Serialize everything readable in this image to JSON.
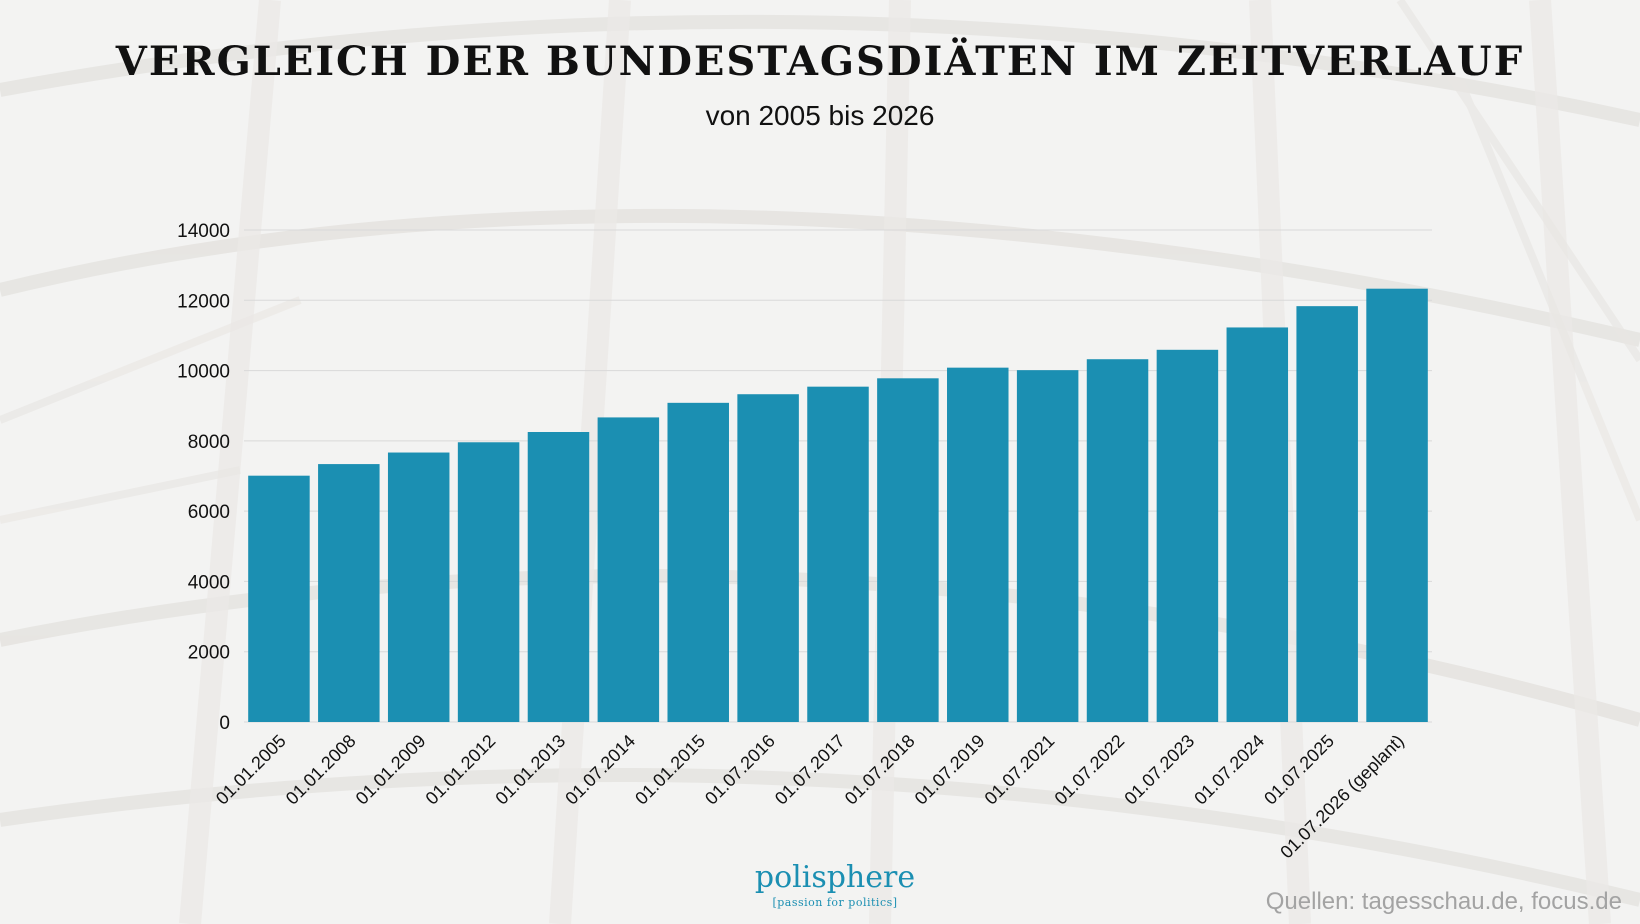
{
  "header": {
    "title": "VERGLEICH DER BUNDESTAGSDIÄTEN IM ZEITVERLAUF",
    "subtitle": "von 2005 bis 2026"
  },
  "branding": {
    "logo_name": "polisphere",
    "logo_tagline": "[passion for politics]",
    "brand_color": "#1b8fb2"
  },
  "footer": {
    "sources": "Quellen: tagesschau.de, focus.de"
  },
  "chart_data": {
    "type": "bar",
    "title": "VERGLEICH DER BUNDESTAGSDIÄTEN IM ZEITVERLAUF",
    "subtitle": "von 2005 bis 2026",
    "xlabel": "",
    "ylabel": "",
    "ylim": [
      0,
      14000
    ],
    "yticks": [
      0,
      2000,
      4000,
      6000,
      8000,
      10000,
      12000,
      14000
    ],
    "grid": true,
    "legend": "none",
    "bar_color": "#1b8fb2",
    "categories": [
      "01.01.2005",
      "01.01.2008",
      "01.01.2009",
      "01.01.2012",
      "01.01.2013",
      "01.07.2014",
      "01.01.2015",
      "01.07.2016",
      "01.07.2017",
      "01.07.2018",
      "01.07.2019",
      "01.07.2021",
      "01.07.2022",
      "01.07.2023",
      "01.07.2024",
      "01.07.2025",
      "01.07.2026 (geplant)"
    ],
    "values": [
      7009,
      7339,
      7668,
      7960,
      8252,
      8667,
      9082,
      9327,
      9542,
      9780,
      10083,
      10012,
      10323,
      10591,
      11227,
      11833,
      12330
    ]
  }
}
